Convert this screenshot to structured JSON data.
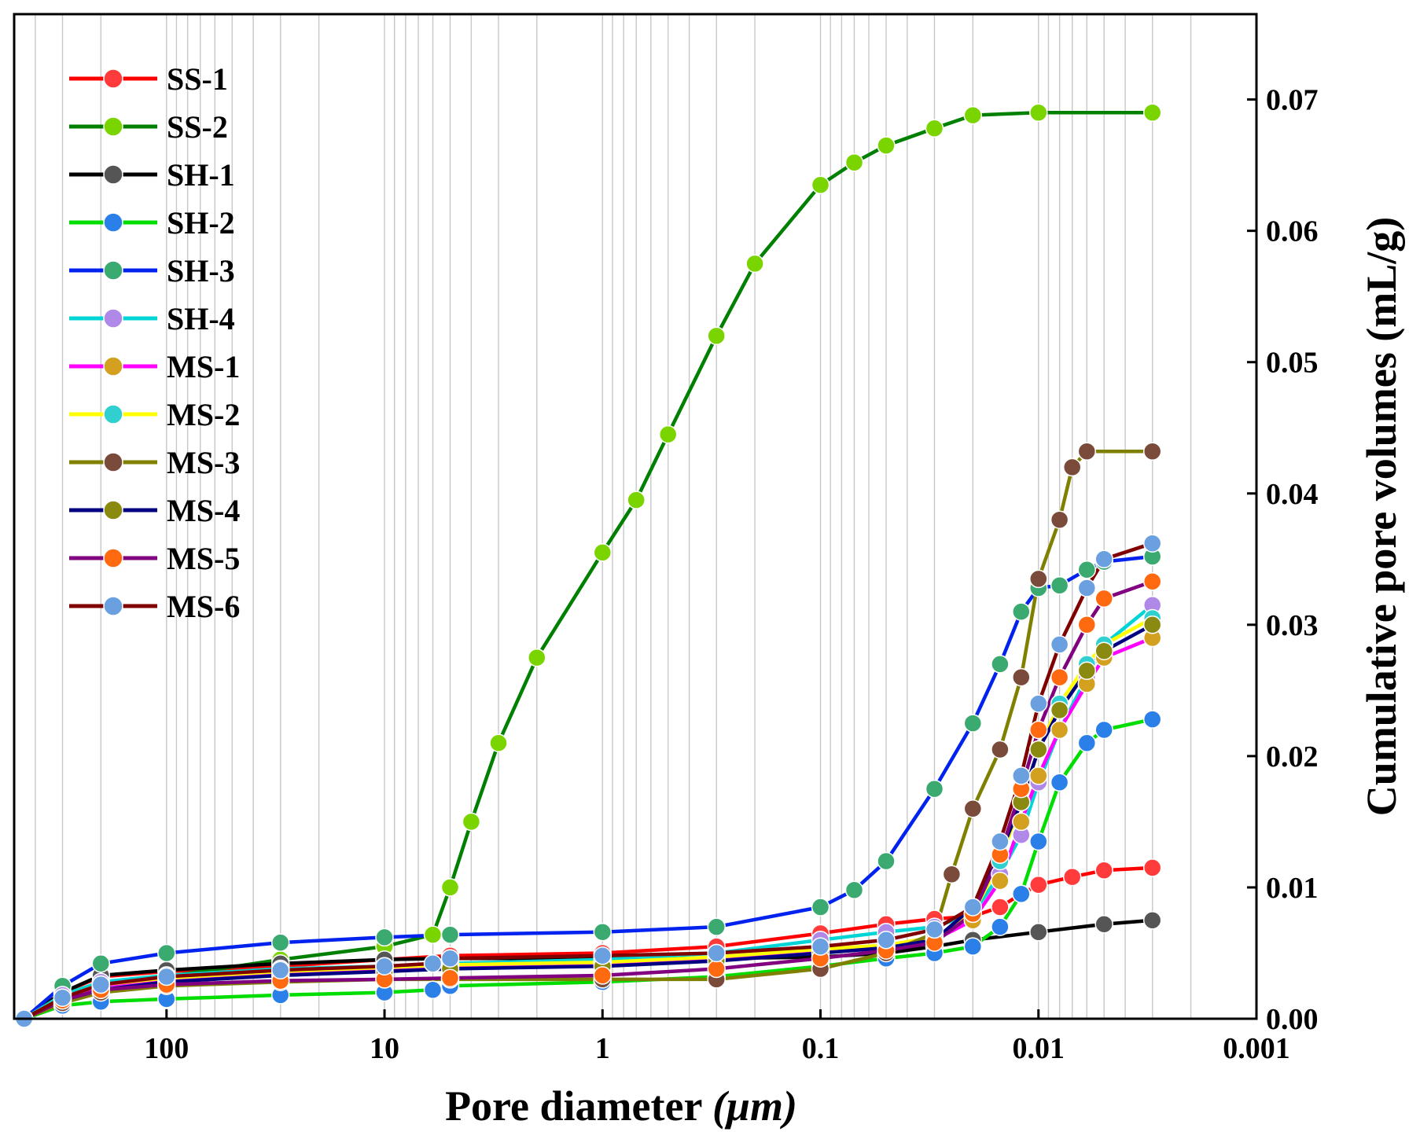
{
  "chart_data": {
    "type": "line",
    "title": "",
    "xlabel": "Pore diameter",
    "xlabel_unit": "(μm)",
    "ylabel": "Cumulative pore volumes (mL/g)",
    "x_scale": "log",
    "x_reversed": true,
    "xlim": [
      500,
      0.001
    ],
    "ylim": [
      0,
      0.0765
    ],
    "x_ticks": [
      100,
      10,
      1,
      0.1,
      0.01,
      0.001
    ],
    "x_tick_labels": [
      "100",
      "10",
      "1",
      "0.1",
      "0.01",
      "0.001"
    ],
    "y_ticks": [
      0,
      0.01,
      0.02,
      0.03,
      0.04,
      0.05,
      0.06,
      0.07
    ],
    "y_tick_labels": [
      "0.00",
      "0.01",
      "0.02",
      "0.03",
      "0.04",
      "0.05",
      "0.06",
      "0.07"
    ],
    "y_axis_side": "right",
    "grid": "vertical minor log gridlines",
    "legend_position": "top-left",
    "series": [
      {
        "name": "SS-1",
        "line_color": "#ff0000",
        "marker_color": "#ff3b3b",
        "points": [
          [
            450,
            0
          ],
          [
            300,
            0.002
          ],
          [
            200,
            0.0032
          ],
          [
            100,
            0.0036
          ],
          [
            30,
            0.004
          ],
          [
            10,
            0.0045
          ],
          [
            5,
            0.0048
          ],
          [
            1,
            0.005
          ],
          [
            0.3,
            0.0055
          ],
          [
            0.1,
            0.0065
          ],
          [
            0.05,
            0.0072
          ],
          [
            0.03,
            0.0076
          ],
          [
            0.02,
            0.0078
          ],
          [
            0.015,
            0.0085
          ],
          [
            0.012,
            0.0095
          ],
          [
            0.01,
            0.0102
          ],
          [
            0.007,
            0.0108
          ],
          [
            0.005,
            0.0113
          ],
          [
            0.003,
            0.0115
          ]
        ]
      },
      {
        "name": "SS-2",
        "line_color": "#008000",
        "marker_color": "#7ad400",
        "points": [
          [
            450,
            0
          ],
          [
            300,
            0.0015
          ],
          [
            200,
            0.0025
          ],
          [
            100,
            0.0032
          ],
          [
            30,
            0.0045
          ],
          [
            10,
            0.0055
          ],
          [
            6,
            0.0064
          ],
          [
            5,
            0.01
          ],
          [
            4,
            0.015
          ],
          [
            3,
            0.021
          ],
          [
            2,
            0.0275
          ],
          [
            1,
            0.0355
          ],
          [
            0.7,
            0.0395
          ],
          [
            0.5,
            0.0445
          ],
          [
            0.3,
            0.052
          ],
          [
            0.2,
            0.0575
          ],
          [
            0.1,
            0.0635
          ],
          [
            0.07,
            0.0652
          ],
          [
            0.05,
            0.0665
          ],
          [
            0.03,
            0.0678
          ],
          [
            0.02,
            0.0688
          ],
          [
            0.01,
            0.069
          ],
          [
            0.003,
            0.069
          ]
        ]
      },
      {
        "name": "SH-1",
        "line_color": "#000000",
        "marker_color": "#555555",
        "points": [
          [
            450,
            0
          ],
          [
            300,
            0.002
          ],
          [
            200,
            0.0033
          ],
          [
            100,
            0.0037
          ],
          [
            30,
            0.0042
          ],
          [
            10,
            0.0045
          ],
          [
            5,
            0.0046
          ],
          [
            1,
            0.0046
          ],
          [
            0.3,
            0.0046
          ],
          [
            0.1,
            0.0047
          ],
          [
            0.05,
            0.005
          ],
          [
            0.03,
            0.0055
          ],
          [
            0.02,
            0.006
          ],
          [
            0.01,
            0.0066
          ],
          [
            0.005,
            0.0072
          ],
          [
            0.003,
            0.0075
          ]
        ]
      },
      {
        "name": "SH-2",
        "line_color": "#00dd00",
        "marker_color": "#2a7fe8",
        "points": [
          [
            450,
            0
          ],
          [
            300,
            0.001
          ],
          [
            200,
            0.0013
          ],
          [
            100,
            0.0015
          ],
          [
            30,
            0.0018
          ],
          [
            10,
            0.002
          ],
          [
            6,
            0.0022
          ],
          [
            5,
            0.0025
          ],
          [
            1,
            0.0028
          ],
          [
            0.3,
            0.0032
          ],
          [
            0.1,
            0.004
          ],
          [
            0.05,
            0.0046
          ],
          [
            0.03,
            0.005
          ],
          [
            0.02,
            0.0055
          ],
          [
            0.015,
            0.007
          ],
          [
            0.012,
            0.0095
          ],
          [
            0.01,
            0.0135
          ],
          [
            0.008,
            0.018
          ],
          [
            0.006,
            0.021
          ],
          [
            0.005,
            0.022
          ],
          [
            0.003,
            0.0228
          ]
        ]
      },
      {
        "name": "SH-3",
        "line_color": "#0022ee",
        "marker_color": "#3aaa70",
        "points": [
          [
            450,
            0
          ],
          [
            300,
            0.0025
          ],
          [
            200,
            0.0042
          ],
          [
            100,
            0.005
          ],
          [
            30,
            0.0058
          ],
          [
            10,
            0.0062
          ],
          [
            5,
            0.0064
          ],
          [
            1,
            0.0066
          ],
          [
            0.3,
            0.007
          ],
          [
            0.1,
            0.0085
          ],
          [
            0.07,
            0.0098
          ],
          [
            0.05,
            0.012
          ],
          [
            0.03,
            0.0175
          ],
          [
            0.02,
            0.0225
          ],
          [
            0.015,
            0.027
          ],
          [
            0.012,
            0.031
          ],
          [
            0.01,
            0.0328
          ],
          [
            0.008,
            0.033
          ],
          [
            0.006,
            0.0342
          ],
          [
            0.005,
            0.0348
          ],
          [
            0.003,
            0.0352
          ]
        ]
      },
      {
        "name": "SH-4",
        "line_color": "#00d4d4",
        "marker_color": "#b088e8",
        "points": [
          [
            450,
            0
          ],
          [
            300,
            0.0018
          ],
          [
            200,
            0.0028
          ],
          [
            100,
            0.0033
          ],
          [
            30,
            0.0038
          ],
          [
            10,
            0.004
          ],
          [
            5,
            0.0042
          ],
          [
            1,
            0.0045
          ],
          [
            0.3,
            0.005
          ],
          [
            0.1,
            0.006
          ],
          [
            0.05,
            0.0066
          ],
          [
            0.03,
            0.007
          ],
          [
            0.02,
            0.008
          ],
          [
            0.015,
            0.011
          ],
          [
            0.012,
            0.014
          ],
          [
            0.01,
            0.018
          ],
          [
            0.008,
            0.022
          ],
          [
            0.006,
            0.026
          ],
          [
            0.005,
            0.0285
          ],
          [
            0.003,
            0.0315
          ]
        ]
      },
      {
        "name": "MS-1",
        "line_color": "#ff00ff",
        "marker_color": "#d4a020",
        "points": [
          [
            450,
            0
          ],
          [
            300,
            0.0015
          ],
          [
            200,
            0.0025
          ],
          [
            100,
            0.003
          ],
          [
            30,
            0.0035
          ],
          [
            10,
            0.0038
          ],
          [
            5,
            0.004
          ],
          [
            1,
            0.0042
          ],
          [
            0.3,
            0.0046
          ],
          [
            0.1,
            0.0052
          ],
          [
            0.05,
            0.0055
          ],
          [
            0.03,
            0.006
          ],
          [
            0.02,
            0.0075
          ],
          [
            0.015,
            0.0105
          ],
          [
            0.012,
            0.015
          ],
          [
            0.01,
            0.0185
          ],
          [
            0.008,
            0.022
          ],
          [
            0.006,
            0.0255
          ],
          [
            0.005,
            0.0275
          ],
          [
            0.003,
            0.029
          ]
        ]
      },
      {
        "name": "MS-2",
        "line_color": "#ffff00",
        "marker_color": "#30d0d0",
        "points": [
          [
            450,
            0
          ],
          [
            300,
            0.0016
          ],
          [
            200,
            0.0026
          ],
          [
            100,
            0.0031
          ],
          [
            30,
            0.0036
          ],
          [
            10,
            0.0039
          ],
          [
            5,
            0.0041
          ],
          [
            1,
            0.0043
          ],
          [
            0.3,
            0.0047
          ],
          [
            0.1,
            0.0053
          ],
          [
            0.05,
            0.0056
          ],
          [
            0.03,
            0.0062
          ],
          [
            0.02,
            0.008
          ],
          [
            0.015,
            0.012
          ],
          [
            0.012,
            0.0165
          ],
          [
            0.01,
            0.0205
          ],
          [
            0.008,
            0.024
          ],
          [
            0.006,
            0.027
          ],
          [
            0.005,
            0.0285
          ],
          [
            0.003,
            0.0305
          ]
        ]
      },
      {
        "name": "MS-3",
        "line_color": "#808000",
        "marker_color": "#7a4a3a",
        "points": [
          [
            450,
            0
          ],
          [
            300,
            0.0012
          ],
          [
            200,
            0.002
          ],
          [
            100,
            0.0025
          ],
          [
            30,
            0.0028
          ],
          [
            10,
            0.003
          ],
          [
            5,
            0.003
          ],
          [
            1,
            0.003
          ],
          [
            0.3,
            0.003
          ],
          [
            0.1,
            0.0038
          ],
          [
            0.05,
            0.005
          ],
          [
            0.03,
            0.0065
          ],
          [
            0.025,
            0.011
          ],
          [
            0.02,
            0.016
          ],
          [
            0.015,
            0.0205
          ],
          [
            0.012,
            0.026
          ],
          [
            0.01,
            0.0335
          ],
          [
            0.008,
            0.038
          ],
          [
            0.007,
            0.042
          ],
          [
            0.006,
            0.0432
          ],
          [
            0.003,
            0.0432
          ]
        ]
      },
      {
        "name": "MS-4",
        "line_color": "#000080",
        "marker_color": "#8a8a10",
        "points": [
          [
            450,
            0
          ],
          [
            300,
            0.0014
          ],
          [
            200,
            0.0022
          ],
          [
            100,
            0.0028
          ],
          [
            30,
            0.0033
          ],
          [
            10,
            0.0036
          ],
          [
            5,
            0.0038
          ],
          [
            1,
            0.004
          ],
          [
            0.3,
            0.0044
          ],
          [
            0.1,
            0.005
          ],
          [
            0.05,
            0.0054
          ],
          [
            0.03,
            0.006
          ],
          [
            0.02,
            0.0085
          ],
          [
            0.015,
            0.0125
          ],
          [
            0.012,
            0.0165
          ],
          [
            0.01,
            0.0205
          ],
          [
            0.008,
            0.0235
          ],
          [
            0.006,
            0.0265
          ],
          [
            0.005,
            0.028
          ],
          [
            0.003,
            0.03
          ]
        ]
      },
      {
        "name": "MS-5",
        "line_color": "#800080",
        "marker_color": "#ff6a10",
        "points": [
          [
            450,
            0
          ],
          [
            300,
            0.0014
          ],
          [
            200,
            0.0022
          ],
          [
            100,
            0.0026
          ],
          [
            30,
            0.0029
          ],
          [
            10,
            0.003
          ],
          [
            5,
            0.0031
          ],
          [
            1,
            0.0033
          ],
          [
            0.3,
            0.0038
          ],
          [
            0.1,
            0.0046
          ],
          [
            0.05,
            0.0052
          ],
          [
            0.03,
            0.0058
          ],
          [
            0.02,
            0.008
          ],
          [
            0.015,
            0.0125
          ],
          [
            0.012,
            0.0175
          ],
          [
            0.01,
            0.022
          ],
          [
            0.008,
            0.026
          ],
          [
            0.006,
            0.03
          ],
          [
            0.005,
            0.032
          ],
          [
            0.003,
            0.0333
          ]
        ]
      },
      {
        "name": "MS-6",
        "line_color": "#800000",
        "marker_color": "#6aa0e0",
        "points": [
          [
            450,
            0
          ],
          [
            300,
            0.0016
          ],
          [
            200,
            0.0026
          ],
          [
            100,
            0.0032
          ],
          [
            30,
            0.0037
          ],
          [
            10,
            0.004
          ],
          [
            6,
            0.0042
          ],
          [
            5,
            0.0046
          ],
          [
            1,
            0.0048
          ],
          [
            0.3,
            0.005
          ],
          [
            0.1,
            0.0055
          ],
          [
            0.05,
            0.006
          ],
          [
            0.03,
            0.0068
          ],
          [
            0.02,
            0.0085
          ],
          [
            0.015,
            0.0135
          ],
          [
            0.012,
            0.0185
          ],
          [
            0.01,
            0.024
          ],
          [
            0.008,
            0.0285
          ],
          [
            0.006,
            0.0328
          ],
          [
            0.005,
            0.035
          ],
          [
            0.003,
            0.0362
          ]
        ]
      }
    ]
  }
}
